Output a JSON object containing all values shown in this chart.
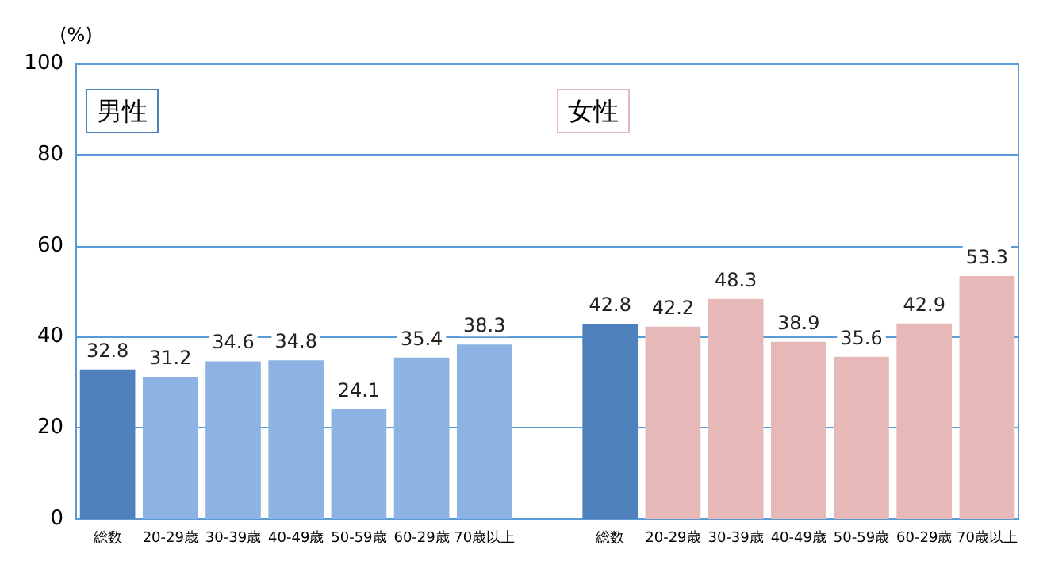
{
  "chart_data": {
    "type": "bar",
    "ylabel": "(%)",
    "categories": [
      "総数",
      "20-29歳",
      "30-39歳",
      "40-49歳",
      "50-59歳",
      "60-29歳",
      "70歳以上",
      null,
      "総数",
      "20-29歳",
      "30-39歳",
      "40-49歳",
      "50-59歳",
      "60-29歳",
      "70歳以上"
    ],
    "values": [
      32.8,
      31.2,
      34.6,
      34.8,
      24.1,
      35.4,
      38.3,
      null,
      42.8,
      42.2,
      48.3,
      38.9,
      35.6,
      42.9,
      53.3
    ],
    "colors": [
      "#4f81bd",
      "#8db3e2",
      "#8db3e2",
      "#8db3e2",
      "#8db3e2",
      "#8db3e2",
      "#8db3e2",
      "#ffffff",
      "#4f81bd",
      "#e6b9b8",
      "#e6b9b8",
      "#e6b9b8",
      "#e6b9b8",
      "#e6b9b8",
      "#e6b9b8"
    ],
    "ylim": [
      0,
      100
    ],
    "yticks": [
      0,
      20,
      40,
      60,
      80,
      100
    ],
    "grid": "y",
    "data_labels": true,
    "annotations": [
      "男性",
      "女性"
    ]
  }
}
